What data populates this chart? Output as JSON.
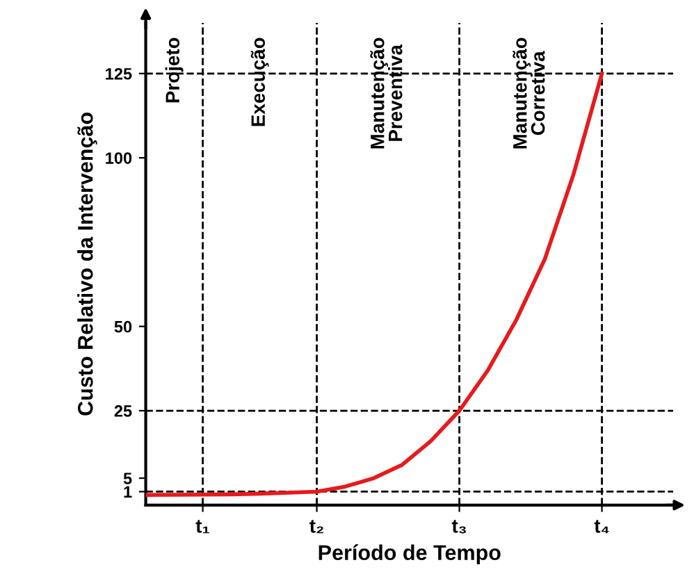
{
  "chart_data": {
    "type": "line",
    "xlabel": "Período de Tempo",
    "ylabel": "Custo Relativo da Intervenção",
    "categories": [
      null,
      null,
      "t₁",
      null,
      null,
      null,
      "t₂",
      null,
      null,
      null,
      null,
      "t₃",
      null,
      null,
      null,
      null,
      "t₄",
      null,
      null
    ],
    "series": [
      {
        "color": "#e8191c",
        "values": [
          0,
          0.05,
          0.1,
          0.2,
          0.4,
          0.7,
          1,
          2.5,
          5,
          9,
          16,
          25,
          37,
          52,
          70,
          95,
          125,
          null,
          null
        ]
      }
    ],
    "ylim": [
      -3,
      140
    ],
    "yticks": [
      1,
      5,
      25,
      50,
      100,
      125
    ],
    "ref_lines": [
      {
        "axis": "x",
        "value": "t₁",
        "line_style": "dashed",
        "color": "#000000"
      },
      {
        "axis": "x",
        "value": "t₂",
        "line_style": "dashed",
        "color": "#000000"
      },
      {
        "axis": "x",
        "value": "t₃",
        "line_style": "dashed",
        "color": "#000000"
      },
      {
        "axis": "x",
        "value": "t₄",
        "line_style": "dashed",
        "color": "#000000"
      },
      {
        "axis": "y",
        "value": 1,
        "line_style": "dashed",
        "color": "#000000"
      },
      {
        "axis": "y",
        "value": 25,
        "line_style": "dashed",
        "color": "#000000"
      },
      {
        "axis": "y",
        "value": 125,
        "line_style": "dashed",
        "color": "#000000"
      }
    ],
    "annotations": [
      "Projeto",
      "Execução",
      "Manutenção\nPreventiva",
      "Manutenção\nCorretiva"
    ],
    "grid": false,
    "legend": false,
    "marker": "none",
    "line_style": "solid"
  }
}
